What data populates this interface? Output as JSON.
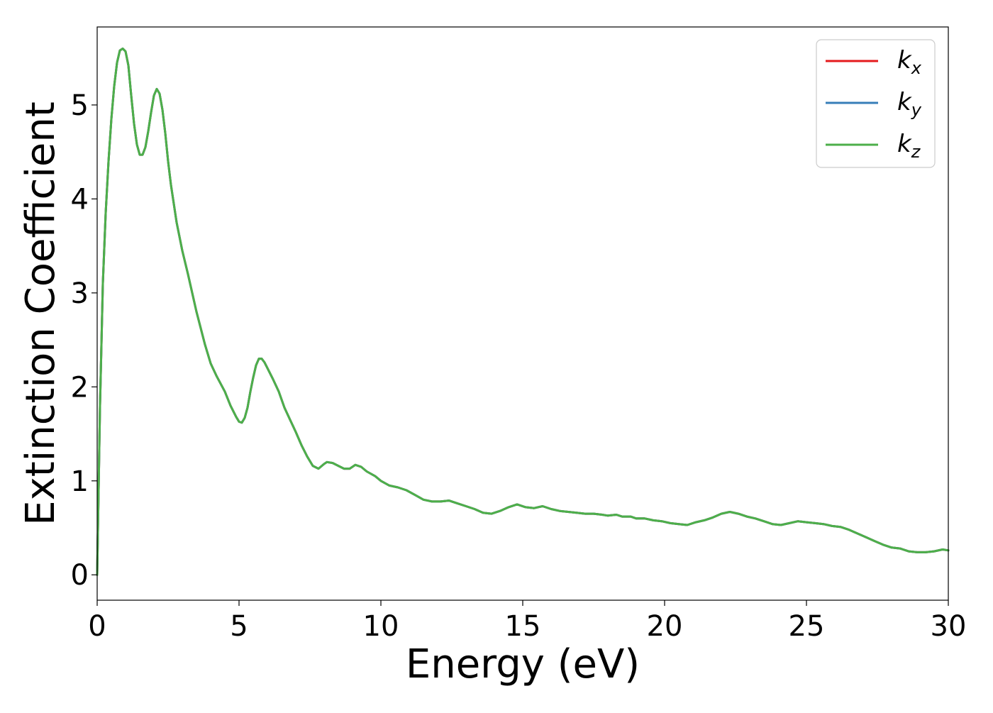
{
  "chart_data": {
    "type": "line",
    "xlabel": "Energy (eV)",
    "ylabel": "Extinction Coefficient",
    "xlim": [
      0,
      30
    ],
    "ylim": [
      -0.27,
      5.83
    ],
    "xticks": [
      0,
      5,
      10,
      15,
      20,
      25,
      30
    ],
    "yticks": [
      0,
      1,
      2,
      3,
      4,
      5
    ],
    "grid": false,
    "legend_position": "top-right",
    "x": [
      0.0,
      0.05,
      0.1,
      0.2,
      0.3,
      0.4,
      0.5,
      0.6,
      0.7,
      0.8,
      0.9,
      1.0,
      1.1,
      1.2,
      1.3,
      1.4,
      1.5,
      1.6,
      1.7,
      1.8,
      1.9,
      2.0,
      2.1,
      2.2,
      2.3,
      2.4,
      2.5,
      2.6,
      2.8,
      3.0,
      3.2,
      3.5,
      3.8,
      4.0,
      4.2,
      4.5,
      4.7,
      4.9,
      5.0,
      5.1,
      5.2,
      5.3,
      5.4,
      5.5,
      5.6,
      5.7,
      5.8,
      5.9,
      6.0,
      6.2,
      6.4,
      6.6,
      6.8,
      7.0,
      7.2,
      7.4,
      7.6,
      7.8,
      8.0,
      8.1,
      8.3,
      8.5,
      8.7,
      8.9,
      9.1,
      9.3,
      9.5,
      9.8,
      10.0,
      10.3,
      10.6,
      10.9,
      11.2,
      11.5,
      11.8,
      12.1,
      12.4,
      12.7,
      13.0,
      13.3,
      13.6,
      13.9,
      14.2,
      14.5,
      14.8,
      15.1,
      15.4,
      15.7,
      16.0,
      16.3,
      16.6,
      16.9,
      17.2,
      17.5,
      17.8,
      18.0,
      18.3,
      18.5,
      18.8,
      19.0,
      19.3,
      19.6,
      19.9,
      20.2,
      20.5,
      20.8,
      21.1,
      21.4,
      21.7,
      22.0,
      22.3,
      22.6,
      22.9,
      23.2,
      23.5,
      23.8,
      24.1,
      24.4,
      24.7,
      25.0,
      25.3,
      25.6,
      25.9,
      26.2,
      26.5,
      26.8,
      27.1,
      27.4,
      27.7,
      28.0,
      28.3,
      28.6,
      28.9,
      29.2,
      29.5,
      29.8,
      30.0
    ],
    "series": [
      {
        "name": "k_x",
        "color": "#e41a1c",
        "y": [
          0.0,
          0.9,
          1.8,
          3.1,
          3.85,
          4.4,
          4.85,
          5.2,
          5.45,
          5.58,
          5.6,
          5.57,
          5.42,
          5.1,
          4.8,
          4.58,
          4.47,
          4.47,
          4.55,
          4.72,
          4.92,
          5.1,
          5.17,
          5.12,
          4.95,
          4.7,
          4.4,
          4.15,
          3.75,
          3.45,
          3.2,
          2.8,
          2.45,
          2.25,
          2.12,
          1.95,
          1.8,
          1.68,
          1.63,
          1.62,
          1.67,
          1.78,
          1.95,
          2.1,
          2.23,
          2.3,
          2.3,
          2.26,
          2.2,
          2.08,
          1.95,
          1.78,
          1.65,
          1.52,
          1.38,
          1.26,
          1.16,
          1.13,
          1.18,
          1.2,
          1.19,
          1.16,
          1.13,
          1.13,
          1.17,
          1.15,
          1.1,
          1.05,
          1.0,
          0.95,
          0.93,
          0.9,
          0.85,
          0.8,
          0.78,
          0.78,
          0.79,
          0.76,
          0.73,
          0.7,
          0.66,
          0.65,
          0.68,
          0.72,
          0.75,
          0.72,
          0.71,
          0.73,
          0.7,
          0.68,
          0.67,
          0.66,
          0.65,
          0.65,
          0.64,
          0.63,
          0.64,
          0.62,
          0.62,
          0.6,
          0.6,
          0.58,
          0.57,
          0.55,
          0.54,
          0.53,
          0.56,
          0.58,
          0.61,
          0.65,
          0.67,
          0.65,
          0.62,
          0.6,
          0.57,
          0.54,
          0.53,
          0.55,
          0.57,
          0.56,
          0.55,
          0.54,
          0.52,
          0.51,
          0.48,
          0.44,
          0.4,
          0.36,
          0.32,
          0.29,
          0.28,
          0.25,
          0.24,
          0.24,
          0.25,
          0.27,
          0.26
        ]
      },
      {
        "name": "k_y",
        "color": "#377eb8",
        "y": [
          0.0,
          0.9,
          1.8,
          3.1,
          3.85,
          4.4,
          4.85,
          5.2,
          5.45,
          5.58,
          5.6,
          5.57,
          5.42,
          5.1,
          4.8,
          4.58,
          4.47,
          4.47,
          4.55,
          4.72,
          4.92,
          5.1,
          5.17,
          5.12,
          4.95,
          4.7,
          4.4,
          4.15,
          3.75,
          3.45,
          3.2,
          2.8,
          2.45,
          2.25,
          2.12,
          1.95,
          1.8,
          1.68,
          1.63,
          1.62,
          1.67,
          1.78,
          1.95,
          2.1,
          2.23,
          2.3,
          2.3,
          2.26,
          2.2,
          2.08,
          1.95,
          1.78,
          1.65,
          1.52,
          1.38,
          1.26,
          1.16,
          1.13,
          1.18,
          1.2,
          1.19,
          1.16,
          1.13,
          1.13,
          1.17,
          1.15,
          1.1,
          1.05,
          1.0,
          0.95,
          0.93,
          0.9,
          0.85,
          0.8,
          0.78,
          0.78,
          0.79,
          0.76,
          0.73,
          0.7,
          0.66,
          0.65,
          0.68,
          0.72,
          0.75,
          0.72,
          0.71,
          0.73,
          0.7,
          0.68,
          0.67,
          0.66,
          0.65,
          0.65,
          0.64,
          0.63,
          0.64,
          0.62,
          0.62,
          0.6,
          0.6,
          0.58,
          0.57,
          0.55,
          0.54,
          0.53,
          0.56,
          0.58,
          0.61,
          0.65,
          0.67,
          0.65,
          0.62,
          0.6,
          0.57,
          0.54,
          0.53,
          0.55,
          0.57,
          0.56,
          0.55,
          0.54,
          0.52,
          0.51,
          0.48,
          0.44,
          0.4,
          0.36,
          0.32,
          0.29,
          0.28,
          0.25,
          0.24,
          0.24,
          0.25,
          0.27,
          0.26
        ]
      },
      {
        "name": "k_z",
        "color": "#4daf4a",
        "y": [
          0.0,
          0.9,
          1.8,
          3.1,
          3.85,
          4.4,
          4.85,
          5.2,
          5.45,
          5.58,
          5.6,
          5.57,
          5.42,
          5.1,
          4.8,
          4.58,
          4.47,
          4.47,
          4.55,
          4.72,
          4.92,
          5.1,
          5.17,
          5.12,
          4.95,
          4.7,
          4.4,
          4.15,
          3.75,
          3.45,
          3.2,
          2.8,
          2.45,
          2.25,
          2.12,
          1.95,
          1.8,
          1.68,
          1.63,
          1.62,
          1.67,
          1.78,
          1.95,
          2.1,
          2.23,
          2.3,
          2.3,
          2.26,
          2.2,
          2.08,
          1.95,
          1.78,
          1.65,
          1.52,
          1.38,
          1.26,
          1.16,
          1.13,
          1.18,
          1.2,
          1.19,
          1.16,
          1.13,
          1.13,
          1.17,
          1.15,
          1.1,
          1.05,
          1.0,
          0.95,
          0.93,
          0.9,
          0.85,
          0.8,
          0.78,
          0.78,
          0.79,
          0.76,
          0.73,
          0.7,
          0.66,
          0.65,
          0.68,
          0.72,
          0.75,
          0.72,
          0.71,
          0.73,
          0.7,
          0.68,
          0.67,
          0.66,
          0.65,
          0.65,
          0.64,
          0.63,
          0.64,
          0.62,
          0.62,
          0.6,
          0.6,
          0.58,
          0.57,
          0.55,
          0.54,
          0.53,
          0.56,
          0.58,
          0.61,
          0.65,
          0.67,
          0.65,
          0.62,
          0.6,
          0.57,
          0.54,
          0.53,
          0.55,
          0.57,
          0.56,
          0.55,
          0.54,
          0.52,
          0.51,
          0.48,
          0.44,
          0.4,
          0.36,
          0.32,
          0.29,
          0.28,
          0.25,
          0.24,
          0.24,
          0.25,
          0.27,
          0.26
        ]
      }
    ],
    "legend": [
      {
        "base": "k",
        "sub": "x",
        "color": "#e41a1c"
      },
      {
        "base": "k",
        "sub": "y",
        "color": "#377eb8"
      },
      {
        "base": "k",
        "sub": "z",
        "color": "#4daf4a"
      }
    ]
  }
}
